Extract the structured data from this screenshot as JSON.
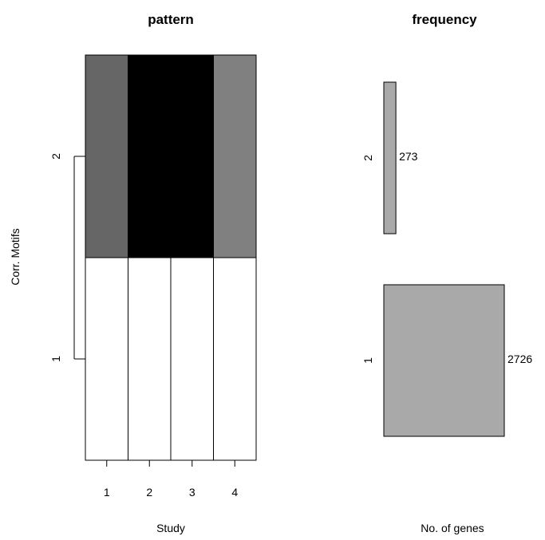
{
  "chart_data": [
    {
      "type": "heatmap",
      "title": "pattern",
      "xlabel": "Study",
      "ylabel": "Corr. Motifs",
      "x_ticks": [
        "1",
        "2",
        "3",
        "4"
      ],
      "y_ticks": [
        "1",
        "2"
      ],
      "cells": [
        {
          "row": 2,
          "col": 1,
          "value": 0.6
        },
        {
          "row": 2,
          "col": 2,
          "value": 1.0
        },
        {
          "row": 2,
          "col": 3,
          "value": 1.0
        },
        {
          "row": 2,
          "col": 4,
          "value": 0.5
        },
        {
          "row": 1,
          "col": 1,
          "value": 0.0
        },
        {
          "row": 1,
          "col": 2,
          "value": 0.0
        },
        {
          "row": 1,
          "col": 3,
          "value": 0.0
        },
        {
          "row": 1,
          "col": 4,
          "value": 0.0
        }
      ],
      "colors": {
        "scale": "white-to-black"
      }
    },
    {
      "type": "bar",
      "title": "frequency",
      "xlabel": "No. of genes",
      "categories": [
        "1",
        "2"
      ],
      "values": [
        2726,
        273
      ],
      "data_labels": [
        "2726",
        "273"
      ],
      "colors": {
        "bar": "#a9a9a9"
      }
    }
  ]
}
